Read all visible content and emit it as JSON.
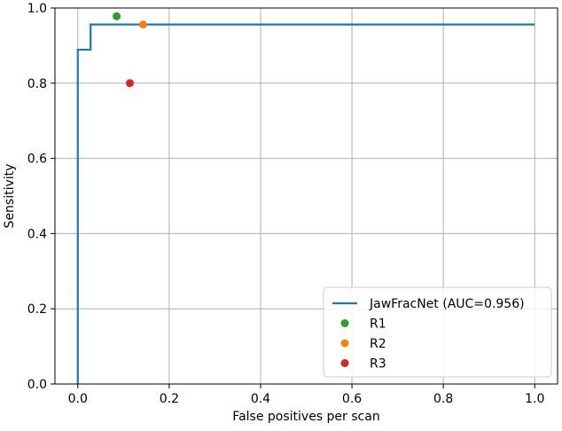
{
  "chart_data": {
    "type": "line",
    "xlabel": "False positives per scan",
    "ylabel": "Sensitivity",
    "xlim": [
      -0.05,
      1.05
    ],
    "ylim": [
      0.0,
      1.0
    ],
    "xticks": [
      "0.0",
      "0.2",
      "0.4",
      "0.6",
      "0.8",
      "1.0"
    ],
    "yticks": [
      "0.0",
      "0.2",
      "0.4",
      "0.6",
      "0.8",
      "1.0"
    ],
    "grid": true,
    "legend_position": "bottom-right",
    "series": [
      {
        "name": "JawFracNet (AUC=0.956)",
        "kind": "step-line",
        "color": "#1f77b4",
        "x": [
          0.0,
          0.0,
          0.028,
          0.028,
          1.0
        ],
        "y": [
          0.0,
          0.889,
          0.889,
          0.956,
          0.956
        ]
      },
      {
        "name": "R1",
        "kind": "point",
        "color": "#2ca02c",
        "x": [
          0.085
        ],
        "y": [
          0.978
        ]
      },
      {
        "name": "R2",
        "kind": "point",
        "color": "#ff7f0e",
        "x": [
          0.143
        ],
        "y": [
          0.956
        ]
      },
      {
        "name": "R3",
        "kind": "point",
        "color": "#d62728",
        "x": [
          0.114
        ],
        "y": [
          0.8
        ]
      }
    ]
  }
}
